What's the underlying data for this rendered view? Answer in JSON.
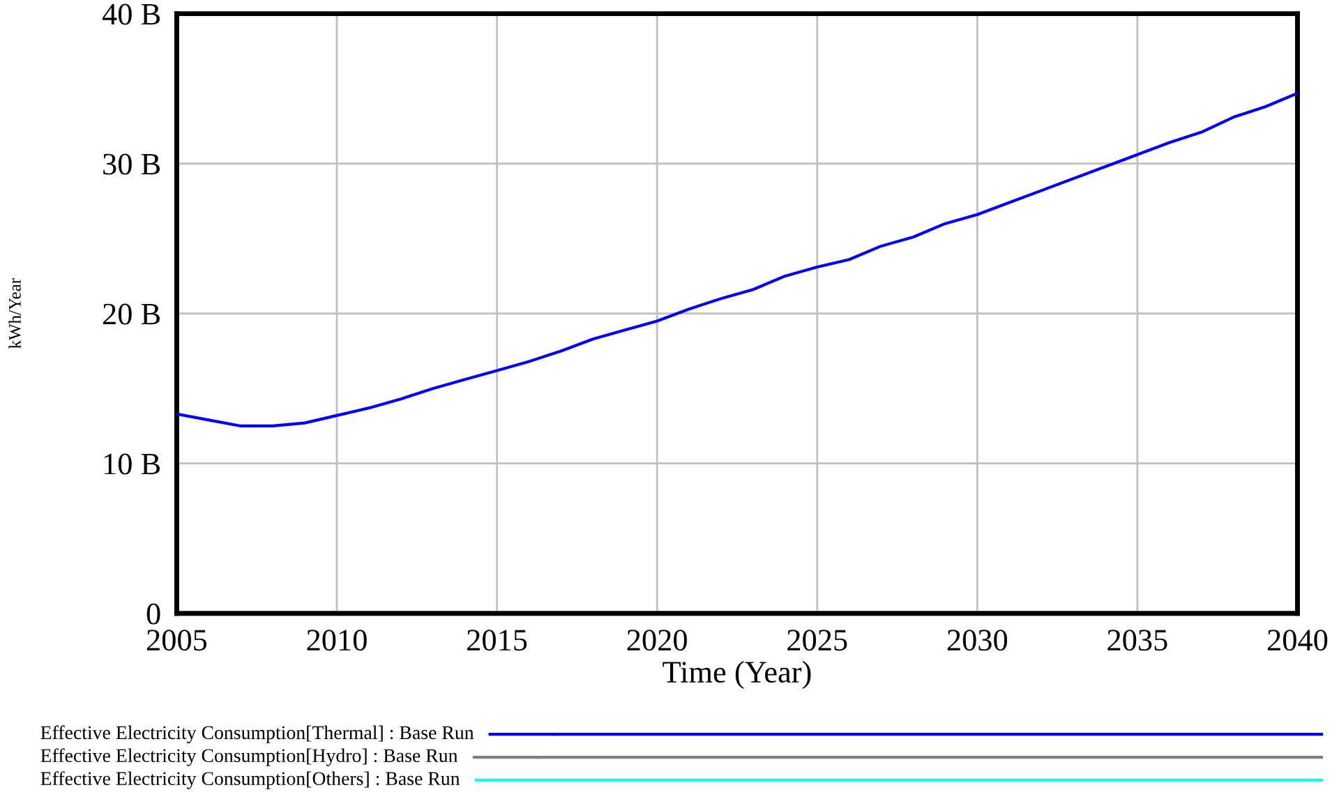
{
  "chart_data": {
    "type": "line",
    "xlabel": "Time (Year)",
    "ylabel": "kWh/Year",
    "x": [
      2005,
      2006,
      2007,
      2008,
      2009,
      2010,
      2011,
      2012,
      2013,
      2014,
      2015,
      2016,
      2017,
      2018,
      2019,
      2020,
      2021,
      2022,
      2023,
      2024,
      2025,
      2026,
      2027,
      2028,
      2029,
      2030,
      2031,
      2032,
      2033,
      2034,
      2035,
      2036,
      2037,
      2038,
      2039,
      2040
    ],
    "series": [
      {
        "name": "Effective Electricity Consumption[Thermal] : Base Run",
        "color": "#0000ff",
        "values": [
          13.3,
          12.9,
          12.5,
          12.5,
          12.7,
          13.2,
          13.7,
          14.3,
          15.0,
          15.6,
          16.2,
          16.8,
          17.5,
          18.3,
          18.9,
          19.5,
          20.3,
          21.0,
          21.6,
          22.5,
          23.1,
          23.6,
          24.5,
          25.1,
          26.0,
          26.6,
          27.4,
          28.2,
          29.0,
          29.8,
          30.6,
          31.4,
          32.1,
          33.1,
          33.8,
          34.7
        ]
      },
      {
        "name": "Effective Electricity Consumption[Hydro] : Base Run",
        "color": "#808080",
        "values": [
          null,
          null,
          null,
          null,
          null,
          null,
          null,
          null,
          null,
          null,
          null,
          null,
          null,
          null,
          null,
          null,
          null,
          null,
          null,
          null,
          null,
          null,
          null,
          null,
          null,
          null,
          null,
          null,
          null,
          null,
          null,
          null,
          null,
          null,
          null,
          null
        ]
      },
      {
        "name": "Effective Electricity Consumption[Others] : Base Run",
        "color": "#00ffff",
        "values": [
          null,
          null,
          null,
          null,
          null,
          null,
          null,
          null,
          null,
          null,
          null,
          null,
          null,
          null,
          null,
          null,
          null,
          null,
          null,
          null,
          null,
          null,
          null,
          null,
          null,
          null,
          null,
          null,
          null,
          null,
          null,
          null,
          null,
          null,
          null,
          null
        ]
      }
    ],
    "xlim": [
      2005,
      2040
    ],
    "xticks": [
      2005,
      2010,
      2015,
      2020,
      2025,
      2030,
      2035,
      2040
    ],
    "ylim": [
      0,
      40
    ],
    "yticks": [
      {
        "value": 0,
        "label": "0"
      },
      {
        "value": 10,
        "label": "10 B"
      },
      {
        "value": 20,
        "label": "20 B"
      },
      {
        "value": 30,
        "label": "30 B"
      },
      {
        "value": 40,
        "label": "40 B"
      }
    ],
    "grid": true,
    "legend": "bottom",
    "line_style": "solid",
    "marker": "none"
  }
}
